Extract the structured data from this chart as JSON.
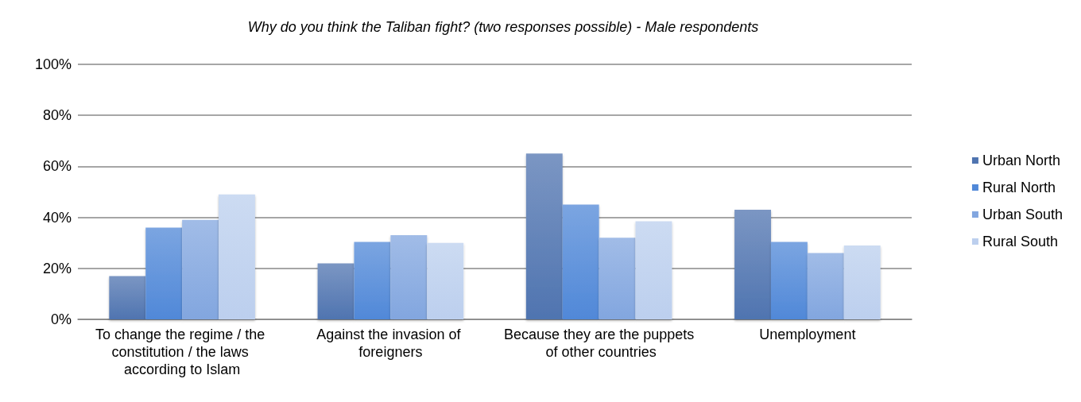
{
  "chart_data": {
    "type": "bar",
    "title": "Why do you think the Taliban fight? (two responses possible) - Male respondents",
    "categories": [
      "To change the regime / the constitution / the laws according to Islam",
      "Against the invasion of foreigners",
      "Because they are the puppets of other countries",
      "Unemployment"
    ],
    "series": [
      {
        "name": "Urban North",
        "color": "#4f74b0",
        "values": [
          17,
          22,
          65,
          43
        ]
      },
      {
        "name": "Rural North",
        "color": "#5088d8",
        "values": [
          36,
          30.4,
          45,
          30.4
        ]
      },
      {
        "name": "Urban South",
        "color": "#82a6df",
        "values": [
          39,
          33,
          32,
          26
        ]
      },
      {
        "name": "Rural South",
        "color": "#bccfee",
        "values": [
          49,
          30,
          38.5,
          29
        ]
      }
    ],
    "ylim": [
      0,
      100
    ],
    "yticks": [
      {
        "value": 0,
        "label": "0%"
      },
      {
        "value": 20,
        "label": "20%"
      },
      {
        "value": 40,
        "label": "40%"
      },
      {
        "value": 60,
        "label": "60%"
      },
      {
        "value": 80,
        "label": "80%"
      },
      {
        "value": 100,
        "label": "100%"
      }
    ],
    "grid": "y",
    "legend": "right"
  }
}
